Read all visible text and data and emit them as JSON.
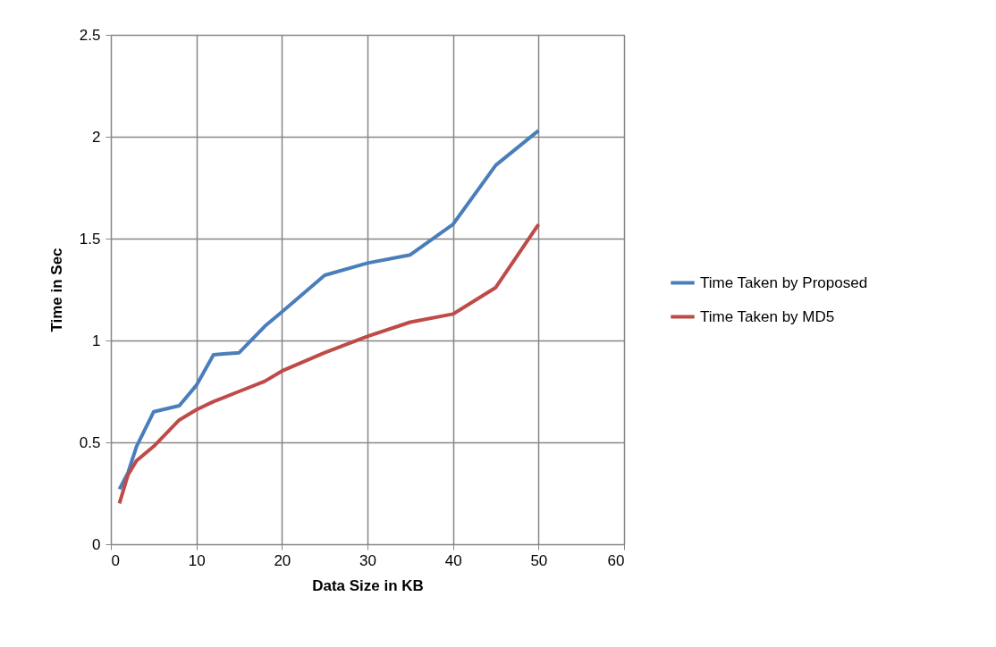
{
  "chart_data": {
    "type": "line",
    "xlabel": "Data Size in KB",
    "ylabel": "Time in Sec",
    "x": [
      1,
      2,
      3,
      5,
      8,
      10,
      12,
      15,
      18,
      20,
      25,
      30,
      35,
      40,
      45,
      50
    ],
    "series": [
      {
        "name": "Time Taken by Proposed",
        "color": "#4a7ebb",
        "values": [
          0.27,
          0.35,
          0.48,
          0.65,
          0.68,
          0.78,
          0.93,
          0.94,
          1.07,
          1.14,
          1.32,
          1.38,
          1.42,
          1.57,
          1.86,
          2.03
        ]
      },
      {
        "name": "Time Taken by MD5",
        "color": "#be4b48",
        "values": [
          0.2,
          0.34,
          0.41,
          0.48,
          0.61,
          0.66,
          0.7,
          0.75,
          0.8,
          0.85,
          0.94,
          1.02,
          1.09,
          1.13,
          1.26,
          1.57
        ]
      }
    ],
    "xlim": [
      0,
      60
    ],
    "xticks": [
      0,
      10,
      20,
      30,
      40,
      50,
      60
    ],
    "ylim": [
      0,
      2.5
    ],
    "yticks": [
      0,
      0.5,
      1,
      1.5,
      2,
      2.5
    ],
    "grid": true,
    "legend": "right",
    "marker": "none",
    "line_style": "solid"
  }
}
